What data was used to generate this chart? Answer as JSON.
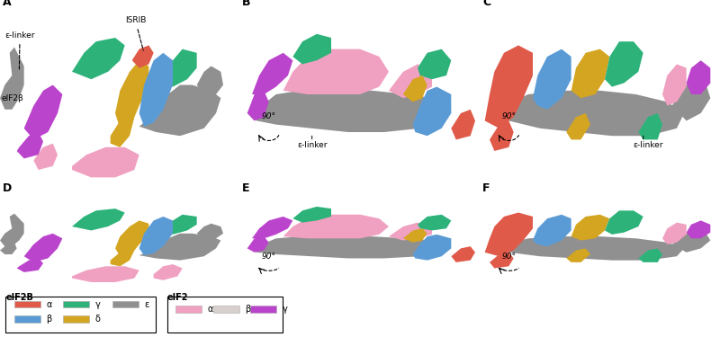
{
  "colors": {
    "eIF2B_alpha": "#e05a4a",
    "eIF2B_beta": "#5b9bd5",
    "eIF2B_gamma": "#2db37a",
    "eIF2B_delta": "#d4a520",
    "eIF2B_epsilon": "#909090",
    "eIF2_alpha": "#f0a0c0",
    "eIF2_beta": "#d8d0cc",
    "eIF2_gamma": "#bb44cc",
    "ISRIB": "#cc2222"
  },
  "legend_eIF2B": {
    "title": "eIF2B",
    "row1": [
      {
        "label": "α",
        "color": "#e05a4a"
      },
      {
        "label": "γ",
        "color": "#2db37a"
      },
      {
        "label": "ε",
        "color": "#909090"
      }
    ],
    "row2": [
      {
        "label": "β",
        "color": "#5b9bd5"
      },
      {
        "label": "δ",
        "color": "#d4a520"
      }
    ]
  },
  "legend_eIF2": {
    "title": "eIF2",
    "row1": [
      {
        "label": "α",
        "color": "#f0a0c0"
      },
      {
        "label": "β",
        "color": "#d8d0cc"
      },
      {
        "label": "γ",
        "color": "#bb44cc"
      }
    ]
  }
}
